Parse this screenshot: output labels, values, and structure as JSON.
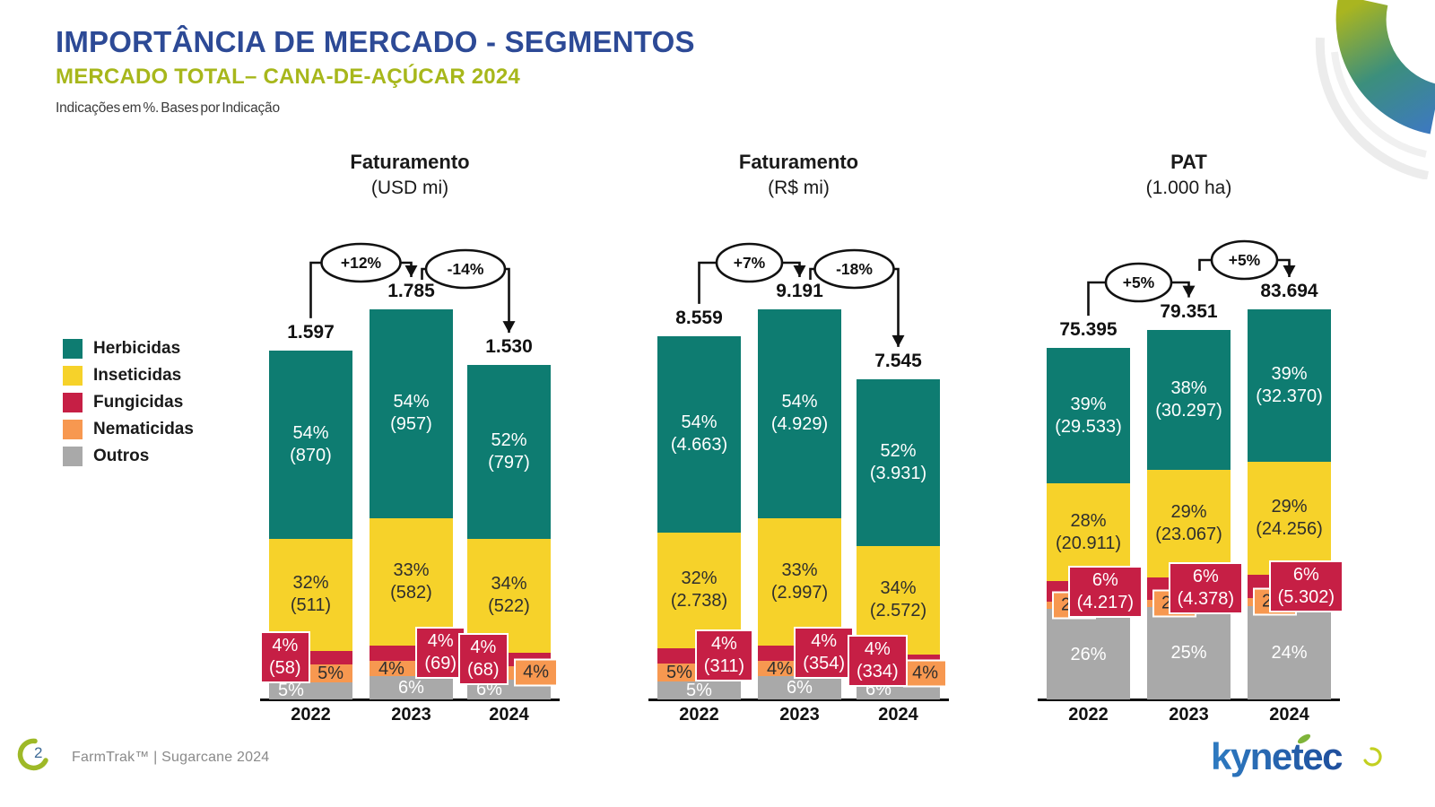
{
  "slide": {
    "title": "IMPORTÂNCIA DE MERCADO - SEGMENTOS",
    "subtitle": "MERCADO TOTAL– CANA-DE-AÇÚCAR 2024",
    "note": "Indicações em %. Bases por Indicação",
    "page_number": "2",
    "footer_text": "FarmTrak™ | Sugarcane 2024",
    "logo_text": "kynetec"
  },
  "colors": {
    "title": "#2D4A96",
    "subtitle": "#A7B71B",
    "accent_olive": "#A9B81D",
    "logo_blue": "#2768B0",
    "footer_text": "#8A8A8A",
    "series": {
      "Herbicidas": "#0E7C71",
      "Inseticidas": "#F6D22A",
      "Fungicidas": "#C61F45",
      "Nematicidas": "#F79850",
      "Outros": "#A9A9A9"
    }
  },
  "legend": [
    {
      "label": "Herbicidas"
    },
    {
      "label": "Inseticidas"
    },
    {
      "label": "Fungicidas"
    },
    {
      "label": "Nematicidas"
    },
    {
      "label": "Outros"
    }
  ],
  "chart_data": [
    {
      "type": "bar",
      "stacked": true,
      "title": "Faturamento",
      "unit": "(USD mi)",
      "categories": [
        "2022",
        "2023",
        "2024"
      ],
      "totals": [
        1597,
        1785,
        1530
      ],
      "total_labels": [
        "1.597",
        "1.785",
        "1.530"
      ],
      "changes": [
        {
          "label": "+12%",
          "from": 0,
          "to": 1
        },
        {
          "label": "-14%",
          "from": 1,
          "to": 2
        }
      ],
      "series": [
        {
          "name": "Herbicidas",
          "pct": [
            54,
            54,
            52
          ],
          "labels": [
            "(870)",
            "(957)",
            "(797)"
          ]
        },
        {
          "name": "Inseticidas",
          "pct": [
            32,
            33,
            34
          ],
          "labels": [
            "(511)",
            "(582)",
            "(522)"
          ]
        },
        {
          "name": "Fungicidas",
          "pct": [
            4,
            4,
            4
          ],
          "labels": [
            "(58)",
            "(69)",
            "(68)"
          ],
          "placement": [
            "callout-left",
            "callout-right",
            "callout-left"
          ]
        },
        {
          "name": "Nematicidas",
          "pct": [
            5,
            4,
            4
          ],
          "placement": [
            "inside-right",
            "inside-left",
            "callout-right"
          ]
        },
        {
          "name": "Outros",
          "pct": [
            5,
            6,
            6
          ],
          "placement": [
            "inside-left",
            "inside-center",
            "inside-left"
          ]
        }
      ]
    },
    {
      "type": "bar",
      "stacked": true,
      "title": "Faturamento",
      "unit": "(R$ mi)",
      "categories": [
        "2022",
        "2023",
        "2024"
      ],
      "totals": [
        8559,
        9191,
        7545
      ],
      "total_labels": [
        "8.559",
        "9.191",
        "7.545"
      ],
      "changes": [
        {
          "label": "+7%",
          "from": 0,
          "to": 1
        },
        {
          "label": "-18%",
          "from": 1,
          "to": 2
        }
      ],
      "series": [
        {
          "name": "Herbicidas",
          "pct": [
            54,
            54,
            52
          ],
          "labels": [
            "(4.663)",
            "(4.929)",
            "(3.931)"
          ]
        },
        {
          "name": "Inseticidas",
          "pct": [
            32,
            33,
            34
          ],
          "labels": [
            "(2.738)",
            "(2.997)",
            "(2.572)"
          ]
        },
        {
          "name": "Fungicidas",
          "pct": [
            4,
            4,
            4
          ],
          "labels": [
            "(311)",
            "(354)",
            "(334)"
          ],
          "placement": [
            "callout-right",
            "callout-right",
            "callout-left"
          ]
        },
        {
          "name": "Nematicidas",
          "pct": [
            5,
            4,
            4
          ],
          "placement": [
            "inside-left",
            "inside-left",
            "callout-right"
          ]
        },
        {
          "name": "Outros",
          "pct": [
            5,
            6,
            6
          ],
          "placement": [
            "inside-center",
            "inside-center",
            "inside-left"
          ]
        }
      ]
    },
    {
      "type": "bar",
      "stacked": true,
      "title": "PAT",
      "unit": "(1.000 ha)",
      "categories": [
        "2022",
        "2023",
        "2024"
      ],
      "totals": [
        75395,
        79351,
        83694
      ],
      "total_labels": [
        "75.395",
        "79.351",
        "83.694"
      ],
      "changes": [
        {
          "label": "+5%",
          "from": 0,
          "to": 1
        },
        {
          "label": "+5%",
          "from": 1,
          "to": 2
        }
      ],
      "series": [
        {
          "name": "Herbicidas",
          "pct": [
            39,
            38,
            39
          ],
          "labels": [
            "(29.533)",
            "(30.297)",
            "(32.370)"
          ]
        },
        {
          "name": "Inseticidas",
          "pct": [
            28,
            29,
            29
          ],
          "labels": [
            "(20.911)",
            "(23.067)",
            "(24.256)"
          ]
        },
        {
          "name": "Fungicidas",
          "pct": [
            6,
            6,
            6
          ],
          "labels": [
            "(4.217)",
            "(4.378)",
            "(5.302)"
          ],
          "placement": [
            "callout-right",
            "callout-right",
            "callout-right"
          ]
        },
        {
          "name": "Nematicidas",
          "pct": [
            2,
            2,
            2
          ],
          "placement": [
            "callout-left",
            "callout-left",
            "callout-left"
          ]
        },
        {
          "name": "Outros",
          "pct": [
            26,
            25,
            24
          ],
          "placement": [
            "inside-center",
            "inside-center",
            "inside-center"
          ]
        }
      ]
    }
  ]
}
